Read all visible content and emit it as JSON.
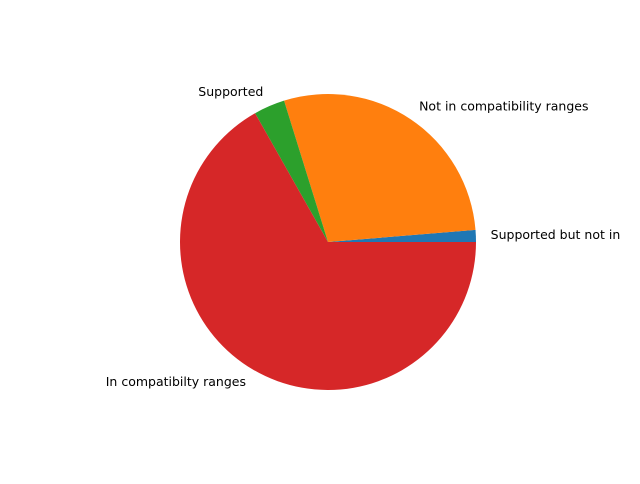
{
  "chart_data": {
    "type": "pie",
    "title": "",
    "slices": [
      {
        "label": "Supported but not in",
        "value": 1.3,
        "color": "#1f77b4"
      },
      {
        "label": "Not in compatibility ranges",
        "value": 28.5,
        "color": "#ff7f0e"
      },
      {
        "label": "Supported",
        "value": 3.4,
        "color": "#2ca02c"
      },
      {
        "label": "In compatibilty ranges",
        "value": 66.8,
        "color": "#d62728"
      }
    ],
    "start_angle_deg": 0,
    "direction": "counterclockwise",
    "legend": "none"
  }
}
